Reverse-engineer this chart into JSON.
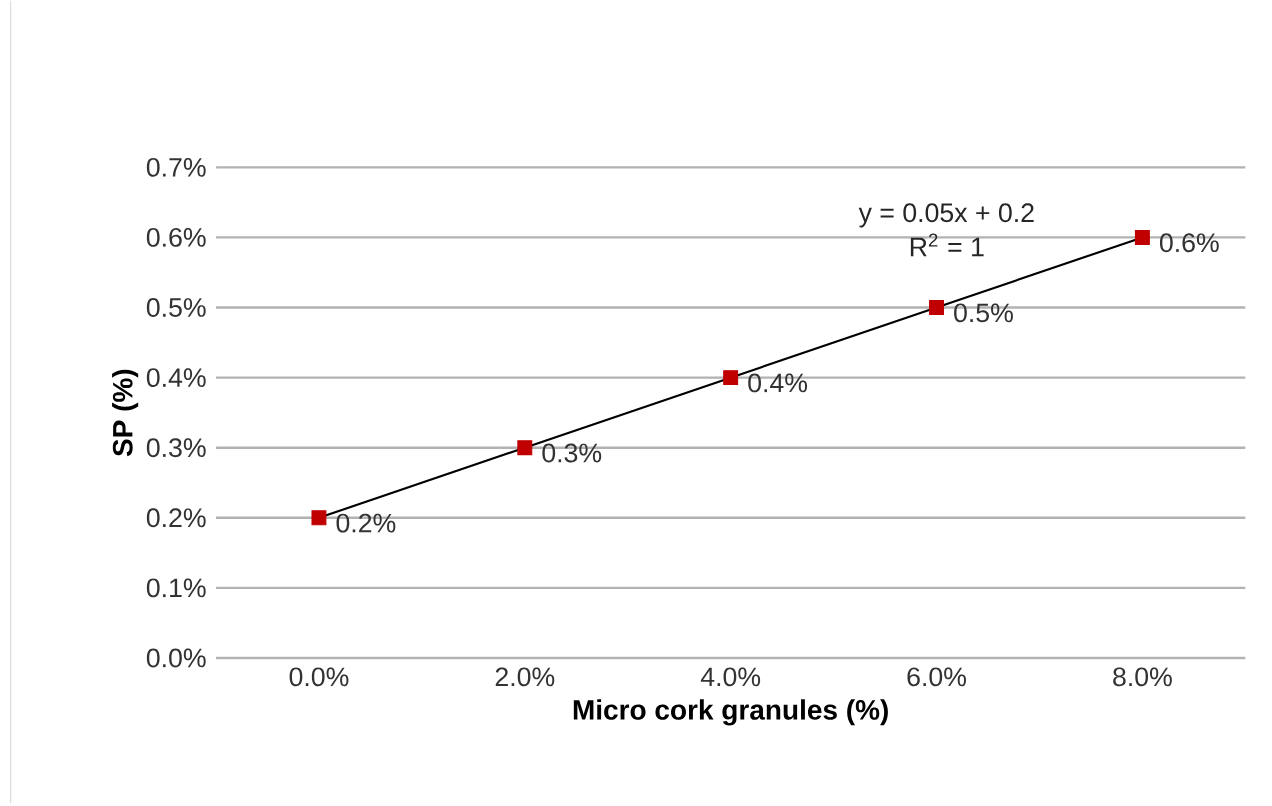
{
  "chart_data": {
    "type": "line",
    "xlabel": "Micro cork granules (%)",
    "ylabel": "SP (%)",
    "categories": [
      "0.0%",
      "2.0%",
      "4.0%",
      "6.0%",
      "8.0%"
    ],
    "series": [
      {
        "type": "scatter",
        "color": "#c00000",
        "marker": "square",
        "values": [
          0.2,
          0.3,
          0.4,
          0.5,
          0.6
        ],
        "value_labels": [
          "0.2%",
          "0.3%",
          "0.4%",
          "0.5%",
          "0.6%"
        ]
      },
      {
        "color": "#000000",
        "marker": "none",
        "values": [
          0.2,
          0.3,
          0.4,
          0.5,
          0.6
        ]
      }
    ],
    "ylim": [
      0,
      0.7
    ],
    "yticks": [
      {
        "value": 0,
        "label": "0.0%"
      },
      {
        "value": 0.1,
        "label": "0.1%"
      },
      {
        "value": 0.2,
        "label": "0.2%"
      },
      {
        "value": 0.3,
        "label": "0.3%"
      },
      {
        "value": 0.4,
        "label": "0.4%"
      },
      {
        "value": 0.5,
        "label": "0.5%"
      },
      {
        "value": 0.6,
        "label": "0.6%"
      },
      {
        "value": 0.7,
        "label": "0.7%"
      }
    ],
    "grid": "y",
    "annotations": [
      "y = 0.05x + 0.2",
      "R$^{2}$ = 1"
    ]
  }
}
